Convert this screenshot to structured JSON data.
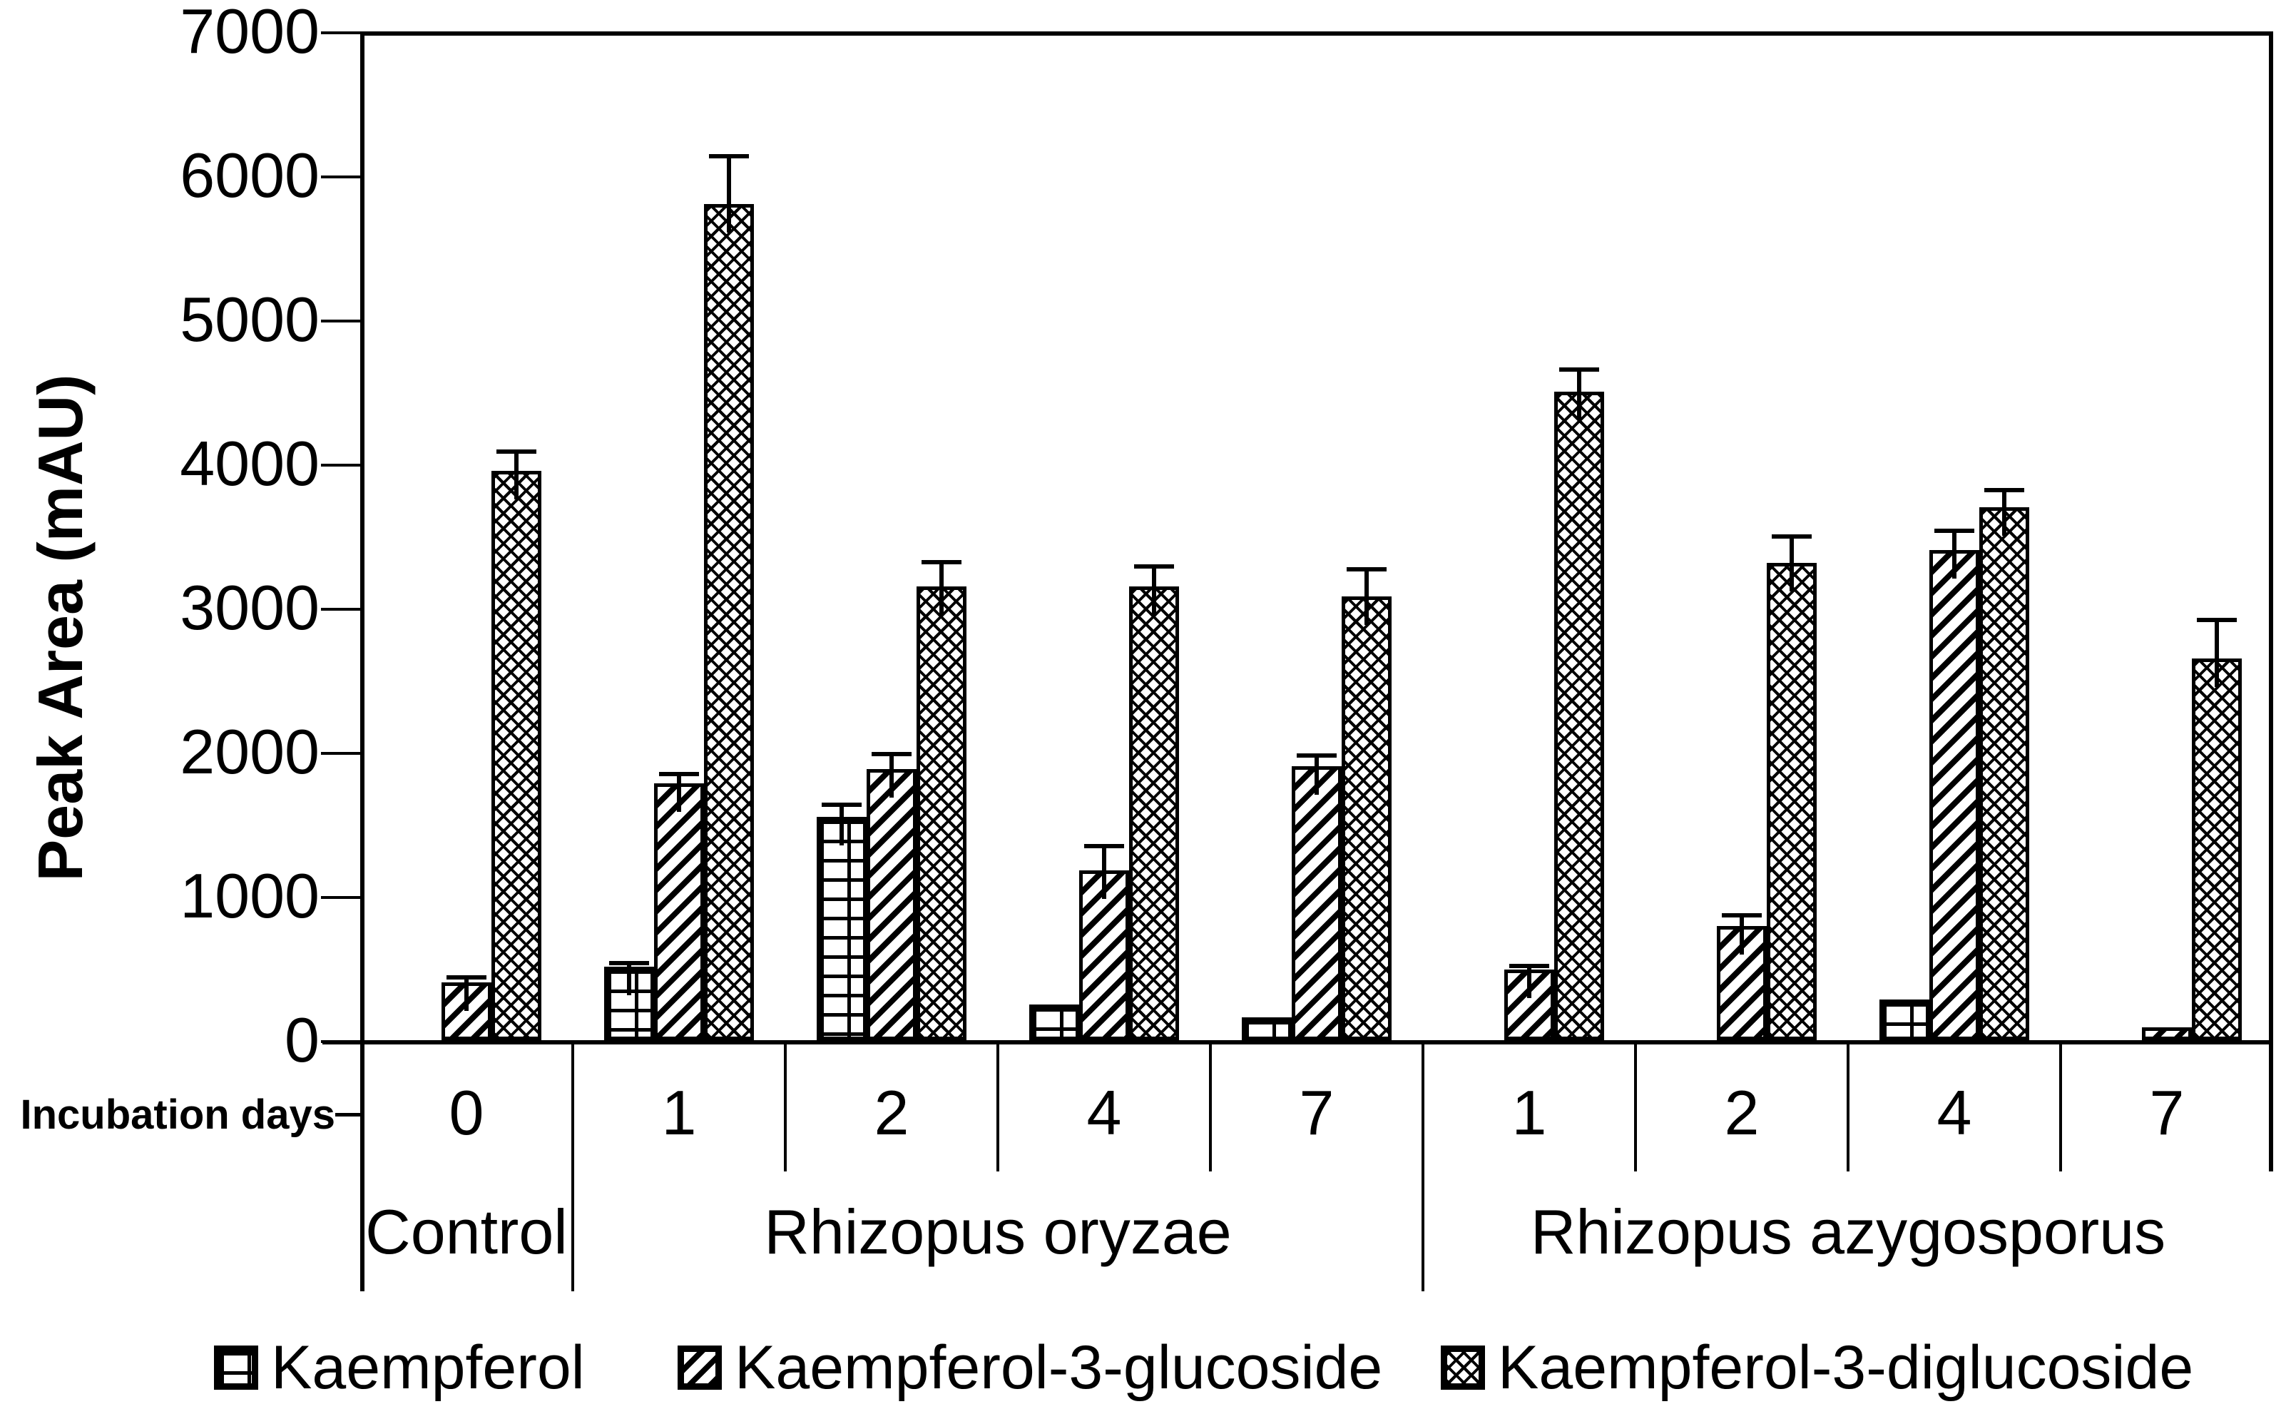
{
  "chart_data": {
    "type": "bar",
    "title": "",
    "ylabel": "Peak Area (mAU)",
    "x_row_label": "Incubation days",
    "ylim": [
      0,
      7000
    ],
    "ytick_step": 1000,
    "yticks": [
      7000,
      6000,
      5000,
      4000,
      3000,
      2000,
      1000,
      0
    ],
    "grid": false,
    "legend_position": "bottom",
    "error_bars": "upper-only",
    "series": [
      {
        "name": "Kaempferol",
        "pattern": "brick",
        "color": "#000000"
      },
      {
        "name": "Kaempferol-3-glucoside",
        "pattern": "diagonal-hatch",
        "color": "#000000"
      },
      {
        "name": "Kaempferol-3-diglucoside",
        "pattern": "diamond-crosshatch",
        "color": "#000000"
      }
    ],
    "groups": [
      {
        "label": "Control",
        "days": [
          {
            "day": "0",
            "values": [
              0,
              400,
              3950
            ],
            "errors": [
              0,
              50,
              150
            ]
          }
        ]
      },
      {
        "label": "Rhizopus oryzae",
        "days": [
          {
            "day": "1",
            "values": [
              510,
              1780,
              5800
            ],
            "errors": [
              40,
              80,
              350
            ]
          },
          {
            "day": "2",
            "values": [
              1550,
              1880,
              3150
            ],
            "errors": [
              100,
              120,
              180
            ]
          },
          {
            "day": "4",
            "values": [
              250,
              1180,
              3150
            ],
            "errors": [
              0,
              180,
              150
            ]
          },
          {
            "day": "7",
            "values": [
              160,
              1900,
              3080
            ],
            "errors": [
              0,
              90,
              200
            ]
          }
        ]
      },
      {
        "label": "Rhizopus azygosporus",
        "days": [
          {
            "day": "1",
            "values": [
              0,
              490,
              4500
            ],
            "errors": [
              0,
              40,
              170
            ]
          },
          {
            "day": "2",
            "values": [
              0,
              790,
              3310
            ],
            "errors": [
              0,
              90,
              200
            ]
          },
          {
            "day": "4",
            "values": [
              280,
              3400,
              3700
            ],
            "errors": [
              0,
              150,
              130
            ]
          },
          {
            "day": "7",
            "values": [
              0,
              90,
              2650
            ],
            "errors": [
              0,
              0,
              280
            ]
          }
        ]
      }
    ]
  }
}
